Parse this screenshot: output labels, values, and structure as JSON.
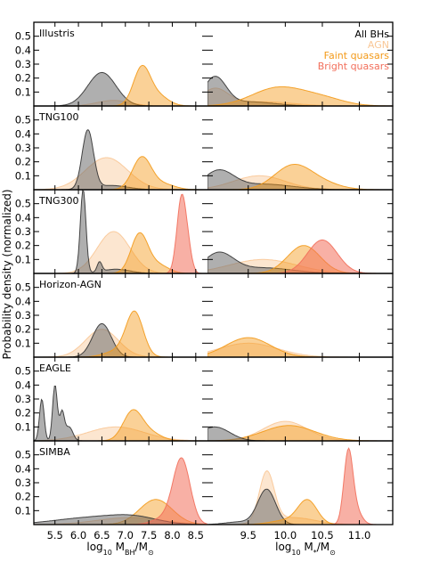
{
  "figure": {
    "ylabel": "Probability density (normalized)",
    "xlabel_left": "log₁₀ M_BH/M_⊙",
    "xlabel_right": "log₁₀ M_*/M_⊙",
    "rows": [
      "Illustris",
      "TNG100",
      "TNG300",
      "Horizon-AGN",
      "EAGLE",
      "SIMBA"
    ],
    "legend": [
      {
        "label": "All BHs",
        "color": "#000000"
      },
      {
        "label": "AGN",
        "color": "#f9c796"
      },
      {
        "label": "Faint quasars",
        "color": "#f39a19"
      },
      {
        "label": "Bright quasars",
        "color": "#f26f5b"
      }
    ],
    "yticks": [
      "0.1",
      "0.2",
      "0.3",
      "0.4",
      "0.5"
    ],
    "xticks_left": [
      "5.5",
      "6.0",
      "6.5",
      "7.0",
      "7.5",
      "8.0",
      "8.5"
    ],
    "xticks_right": [
      "9.5",
      "10.0",
      "10.5",
      "11.0"
    ]
  },
  "chart_data": {
    "type": "area",
    "left_xlim": [
      5.05,
      8.75
    ],
    "right_xlim": [
      8.95,
      11.45
    ],
    "ylim": [
      0,
      0.6
    ],
    "colors": {
      "all_bhs": "#6e6e6e",
      "agn": "#f9c796",
      "faint": "#f39a19",
      "bright": "#f26f5b"
    },
    "panels": [
      {
        "row": 0,
        "side": "left",
        "series": [
          {
            "kind": "agn",
            "peaks": [
              [
                6.75,
                0.04,
                0.35
              ]
            ]
          },
          {
            "kind": "all_bhs",
            "peaks": [
              [
                6.5,
                0.24,
                0.3
              ]
            ]
          },
          {
            "kind": "faint",
            "peaks": [
              [
                7.35,
                0.27,
                0.18
              ],
              [
                7.7,
                0.07,
                0.22
              ]
            ]
          }
        ]
      },
      {
        "row": 0,
        "side": "right",
        "series": [
          {
            "kind": "agn",
            "peaks": [
              [
                9.05,
                0.12,
                0.18
              ],
              [
                9.7,
                0.03,
                0.4
              ]
            ]
          },
          {
            "kind": "all_bhs",
            "peaks": [
              [
                9.05,
                0.2,
                0.15
              ],
              [
                9.5,
                0.03,
                0.35
              ]
            ]
          },
          {
            "kind": "faint",
            "peaks": [
              [
                9.9,
                0.13,
                0.35
              ],
              [
                10.5,
                0.05,
                0.3
              ]
            ]
          }
        ]
      },
      {
        "row": 1,
        "side": "left",
        "series": [
          {
            "kind": "agn",
            "peaks": [
              [
                6.6,
                0.23,
                0.45
              ]
            ]
          },
          {
            "kind": "all_bhs",
            "peaks": [
              [
                6.2,
                0.42,
                0.12
              ],
              [
                6.7,
                0.03,
                0.35
              ]
            ]
          },
          {
            "kind": "faint",
            "peaks": [
              [
                7.35,
                0.23,
                0.2
              ],
              [
                7.8,
                0.04,
                0.25
              ]
            ]
          }
        ]
      },
      {
        "row": 1,
        "side": "right",
        "series": [
          {
            "kind": "agn",
            "peaks": [
              [
                9.65,
                0.1,
                0.35
              ]
            ]
          },
          {
            "kind": "all_bhs",
            "peaks": [
              [
                9.1,
                0.13,
                0.2
              ],
              [
                9.7,
                0.04,
                0.4
              ]
            ]
          },
          {
            "kind": "faint",
            "peaks": [
              [
                10.1,
                0.17,
                0.25
              ],
              [
                10.5,
                0.04,
                0.25
              ]
            ]
          }
        ]
      },
      {
        "row": 2,
        "side": "left",
        "series": [
          {
            "kind": "agn",
            "peaks": [
              [
                6.75,
                0.3,
                0.35
              ]
            ]
          },
          {
            "kind": "all_bhs",
            "peaks": [
              [
                6.1,
                0.6,
                0.06
              ],
              [
                6.45,
                0.07,
                0.05
              ],
              [
                6.8,
                0.03,
                0.3
              ]
            ]
          },
          {
            "kind": "faint",
            "peaks": [
              [
                7.3,
                0.28,
                0.18
              ],
              [
                7.7,
                0.06,
                0.22
              ]
            ]
          },
          {
            "kind": "bright",
            "peaks": [
              [
                8.2,
                0.55,
                0.1
              ],
              [
                8.35,
                0.1,
                0.08
              ]
            ]
          }
        ]
      },
      {
        "row": 2,
        "side": "right",
        "series": [
          {
            "kind": "agn",
            "peaks": [
              [
                9.7,
                0.1,
                0.45
              ]
            ]
          },
          {
            "kind": "all_bhs",
            "peaks": [
              [
                9.1,
                0.14,
                0.2
              ],
              [
                9.7,
                0.04,
                0.4
              ]
            ]
          },
          {
            "kind": "faint",
            "peaks": [
              [
                10.25,
                0.2,
                0.22
              ]
            ]
          },
          {
            "kind": "bright",
            "peaks": [
              [
                10.5,
                0.24,
                0.2
              ]
            ]
          }
        ]
      },
      {
        "row": 3,
        "side": "left",
        "series": [
          {
            "kind": "agn",
            "peaks": [
              [
                6.5,
                0.2,
                0.35
              ]
            ]
          },
          {
            "kind": "all_bhs",
            "peaks": [
              [
                6.5,
                0.24,
                0.2
              ]
            ]
          },
          {
            "kind": "faint",
            "peaks": [
              [
                7.2,
                0.3,
                0.18
              ],
              [
                6.9,
                0.05,
                0.3
              ]
            ]
          }
        ]
      },
      {
        "row": 3,
        "side": "right",
        "series": [
          {
            "kind": "agn",
            "peaks": [
              [
                9.5,
                0.1,
                0.4
              ]
            ]
          },
          {
            "kind": "faint",
            "peaks": [
              [
                9.5,
                0.14,
                0.3
              ]
            ]
          }
        ]
      },
      {
        "row": 4,
        "side": "left",
        "series": [
          {
            "kind": "agn",
            "peaks": [
              [
                6.8,
                0.1,
                0.6
              ]
            ]
          },
          {
            "kind": "faint",
            "peaks": [
              [
                7.15,
                0.2,
                0.2
              ],
              [
                7.5,
                0.06,
                0.25
              ]
            ]
          },
          {
            "kind": "all_bhs",
            "peaks": [
              [
                5.22,
                0.3,
                0.05
              ],
              [
                5.5,
                0.4,
                0.05
              ],
              [
                5.65,
                0.2,
                0.05
              ],
              [
                5.8,
                0.1,
                0.08
              ]
            ]
          }
        ]
      },
      {
        "row": 4,
        "side": "right",
        "series": [
          {
            "kind": "agn",
            "peaks": [
              [
                10.0,
                0.14,
                0.3
              ]
            ]
          },
          {
            "kind": "faint",
            "peaks": [
              [
                10.05,
                0.11,
                0.35
              ]
            ]
          },
          {
            "kind": "all_bhs",
            "peaks": [
              [
                9.05,
                0.1,
                0.2
              ]
            ]
          }
        ]
      },
      {
        "row": 5,
        "side": "left",
        "series": [
          {
            "kind": "agn",
            "peaks": [
              [
                7.1,
                0.05,
                0.7
              ]
            ]
          },
          {
            "kind": "faint",
            "peaks": [
              [
                7.65,
                0.18,
                0.35
              ]
            ]
          },
          {
            "kind": "all_bhs",
            "peaks": [
              [
                6.3,
                0.05,
                0.8
              ],
              [
                7.2,
                0.04,
                0.5
              ]
            ]
          },
          {
            "kind": "bright",
            "peaks": [
              [
                8.2,
                0.46,
                0.18
              ],
              [
                7.85,
                0.05,
                0.25
              ]
            ]
          }
        ]
      },
      {
        "row": 5,
        "side": "right",
        "series": [
          {
            "kind": "agn",
            "peaks": [
              [
                9.75,
                0.36,
                0.1
              ],
              [
                10.1,
                0.05,
                0.3
              ]
            ]
          },
          {
            "kind": "all_bhs",
            "peaks": [
              [
                9.75,
                0.25,
                0.12
              ],
              [
                9.4,
                0.02,
                0.2
              ]
            ]
          },
          {
            "kind": "faint",
            "peaks": [
              [
                10.3,
                0.17,
                0.13
              ],
              [
                10.0,
                0.03,
                0.2
              ]
            ]
          },
          {
            "kind": "bright",
            "peaks": [
              [
                10.85,
                0.5,
                0.06
              ],
              [
                10.95,
                0.1,
                0.08
              ]
            ]
          }
        ]
      }
    ]
  }
}
